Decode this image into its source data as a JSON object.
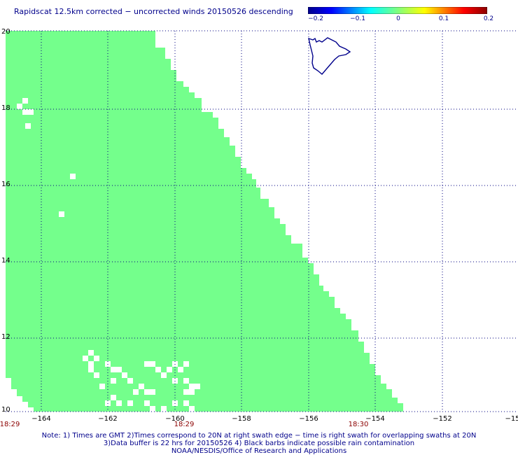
{
  "title": "Rapidscat 12.5km corrected − uncorrected winds 20150526 descending",
  "colorbar": {
    "labels": [
      "−0.2",
      "−0.1",
      "0",
      "0.1",
      "0.2"
    ],
    "range": [
      -0.2,
      0.2
    ]
  },
  "axes": {
    "lat_ticks": [
      "20",
      "18",
      "16",
      "14",
      "12",
      "10"
    ],
    "lon_ticks": [
      "−164",
      "−162",
      "−160",
      "−158",
      "−156",
      "−154",
      "−152",
      "−15"
    ],
    "lat_range": [
      10,
      20
    ],
    "lon_range": [
      -165,
      -150.5
    ]
  },
  "times": [
    "18:29",
    "18:29",
    "18:30"
  ],
  "notes": [
    "Note: 1) Times are GMT 2)Times correspond to 20N at right swath edge − time is right swath for overlapping swaths at 20N",
    "3)Data buffer is 22 hrs for 20150526 4) Black barbs indicate possible rain contamination",
    "NOAA/NESDIS/Office of Research and Applications"
  ],
  "colors": {
    "swath": "#74ff8c",
    "grid": "#000080",
    "coast": "#00008b",
    "time": "#8b0000"
  },
  "swath_value": 0
}
